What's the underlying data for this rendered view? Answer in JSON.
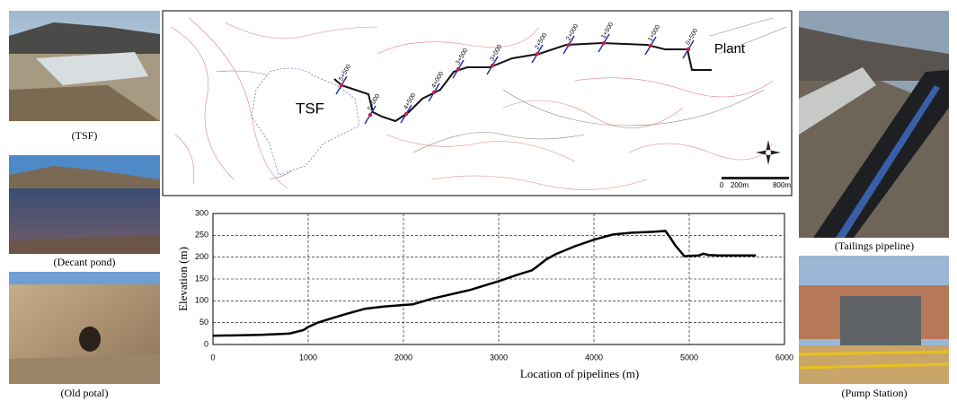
{
  "photos": {
    "left": [
      "(TSF)",
      "(Decant pond)",
      "(Old potal)"
    ],
    "right": [
      "(Tailings pipeline)",
      "(Pump Station)"
    ]
  },
  "map": {
    "labels": [
      "TSF",
      "Plant"
    ],
    "stations": [
      "5+500",
      "5+000",
      "4+500",
      "4+000",
      "3+500",
      "3+000",
      "2+500",
      "2+000",
      "1+500",
      "1+000",
      "0+500"
    ],
    "scale": [
      "0",
      "200m",
      "800m"
    ]
  },
  "chart_data": {
    "type": "line",
    "x_label": "Location of pipelines (m)",
    "y_label": "Elevation (m)",
    "xlim": [
      0,
      6000
    ],
    "xticks": [
      0,
      1000,
      2000,
      3000,
      4000,
      5000,
      6000
    ],
    "ylim": [
      0,
      300
    ],
    "yticks": [
      0,
      50,
      100,
      150,
      200,
      250,
      300
    ],
    "grid": true,
    "series": [
      {
        "color": "#000000",
        "x": [
          0,
          500,
          800,
          950,
          1000,
          1100,
          1200,
          1400,
          1600,
          1800,
          2100,
          2300,
          2500,
          2700,
          3000,
          3200,
          3350,
          3400,
          3500,
          3600,
          3800,
          4000,
          4200,
          4400,
          4600,
          4750,
          4800,
          4850,
          4900,
          4950,
          5000,
          5100,
          5150,
          5200,
          5300,
          5700
        ],
        "values": [
          20,
          22,
          25,
          33,
          40,
          50,
          57,
          70,
          82,
          87,
          92,
          105,
          115,
          125,
          145,
          160,
          170,
          178,
          195,
          207,
          225,
          240,
          252,
          256,
          258,
          260,
          245,
          228,
          215,
          202,
          203,
          204,
          208,
          205,
          204,
          204
        ]
      }
    ]
  }
}
